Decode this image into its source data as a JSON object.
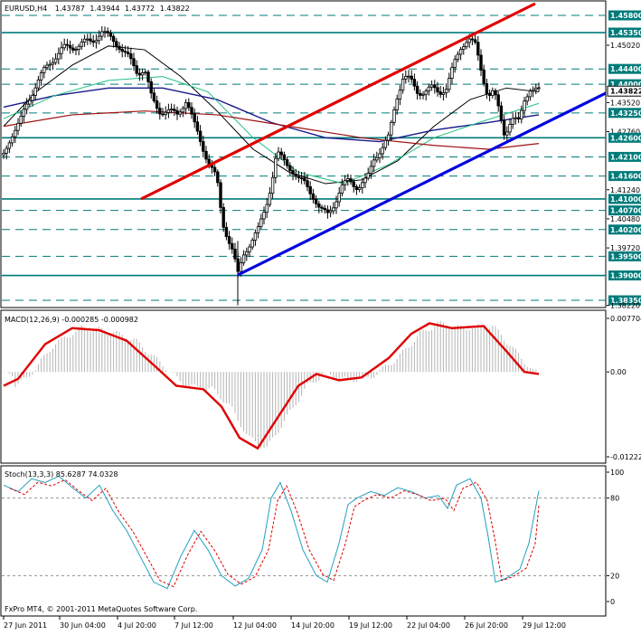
{
  "chart_header": {
    "symbol_tf": "EURUSD,H4",
    "open": "1.43787",
    "high": "1.43944",
    "low": "1.43772",
    "close": "1.43822"
  },
  "price_axis": {
    "levels": [
      {
        "price": 1.458,
        "label": "1.45800",
        "boxed": true
      },
      {
        "price": 1.4535,
        "label": "1.45350",
        "boxed": true
      },
      {
        "price": 1.4502,
        "label": "1.45020",
        "boxed": false
      },
      {
        "price": 1.444,
        "label": "1.44400",
        "boxed": true
      },
      {
        "price": 1.44,
        "label": "1.44000",
        "boxed": true
      },
      {
        "price": 1.4352,
        "label": "1.43520",
        "boxed": false
      },
      {
        "price": 1.4325,
        "label": "1.43250",
        "boxed": true
      },
      {
        "price": 1.4276,
        "label": "1.42760",
        "boxed": false
      },
      {
        "price": 1.426,
        "label": "1.42600",
        "boxed": true
      },
      {
        "price": 1.421,
        "label": "1.42100",
        "boxed": true
      },
      {
        "price": 1.416,
        "label": "1.41600",
        "boxed": true
      },
      {
        "price": 1.4124,
        "label": "1.41240",
        "boxed": false
      },
      {
        "price": 1.41,
        "label": "1.41000",
        "boxed": true
      },
      {
        "price": 1.407,
        "label": "1.40700",
        "boxed": true
      },
      {
        "price": 1.4048,
        "label": "1.40480",
        "boxed": false
      },
      {
        "price": 1.402,
        "label": "1.40200",
        "boxed": true
      },
      {
        "price": 1.3972,
        "label": "1.39720",
        "boxed": false
      },
      {
        "price": 1.395,
        "label": "1.39500",
        "boxed": true
      },
      {
        "price": 1.39,
        "label": "1.39000",
        "boxed": true
      },
      {
        "price": 1.3835,
        "label": "1.38350",
        "boxed": true
      },
      {
        "price": 1.3822,
        "label": "1.38220",
        "boxed": false
      }
    ],
    "current_price": {
      "price": 1.4382,
      "label": "1.43822"
    }
  },
  "macd": {
    "title": "MACD(12,26,9) -0.000285 -0.000982",
    "axis_labels": [
      "0.007704",
      "0.00",
      "-0.012227"
    ],
    "axis_values": [
      0.007704,
      0.0,
      -0.012227
    ]
  },
  "stoch": {
    "title": "Stoch(13,3,3) 85.6287 74.0328",
    "axis_labels": [
      "100",
      "80",
      "20",
      "0"
    ],
    "axis_values": [
      100,
      80,
      20,
      0
    ]
  },
  "copyright": "FxPro MT4, © 2001-2011 MetaQuotes Software Corp.",
  "time_axis": [
    "27 Jun 2011",
    "30 Jun 04:00",
    "4 Jul 20:00",
    "7 Jul 12:00",
    "12 Jul 04:00",
    "14 Jul 20:00",
    "19 Jul 12:00",
    "22 Jul 04:00",
    "26 Jul 20:00",
    "29 Jul 12:00"
  ],
  "colors": {
    "level_line": "#007b7b",
    "level_tag": "#007b7b",
    "channel_upper": "#e00000",
    "channel_lower": "#0000e0",
    "macd_line": "#e00000",
    "macd_hist": "#b4b4b4",
    "stoch_main": "#20a0c0",
    "stoch_signal": "#e00000",
    "ma_black": "#000000",
    "ma_navy": "#1a1a8c",
    "ma_green": "#20c080",
    "ma_maroon": "#a01010",
    "candle": "#000000"
  },
  "chart_data": [
    {
      "type": "line",
      "title": "EURUSD,H4",
      "x": [
        "27 Jun 2011",
        "30 Jun 04:00",
        "4 Jul 20:00",
        "7 Jul 12:00",
        "12 Jul 04:00",
        "14 Jul 20:00",
        "19 Jul 12:00",
        "22 Jul 04:00",
        "26 Jul 20:00",
        "29 Jul 12:00"
      ],
      "series": [
        {
          "values": [
            1.423,
            1.451,
            1.433,
            1.419,
            1.395,
            1.408,
            1.42,
            1.44,
            1.452,
            1.438
          ]
        }
      ],
      "ylim": [
        1.3822,
        1.46
      ]
    },
    {
      "type": "line",
      "title": "MACD(12,26,9) -0.000285 -0.000982",
      "x": [
        "27 Jun 2011",
        "30 Jun 04:00",
        "4 Jul 20:00",
        "7 Jul 12:00",
        "12 Jul 04:00",
        "14 Jul 20:00",
        "19 Jul 12:00",
        "22 Jul 04:00",
        "26 Jul 20:00",
        "29 Jul 12:00"
      ],
      "series": [
        {
          "values": [
            -0.002,
            0.006,
            0.005,
            -0.002,
            -0.011,
            -0.001,
            -0.001,
            0.006,
            0.006,
            -0.0003
          ]
        }
      ],
      "ylim": [
        -0.012227,
        0.007704
      ]
    },
    {
      "type": "line",
      "title": "Stoch(13,3,3) 85.6287 74.0328",
      "x": [
        "27 Jun 2011",
        "30 Jun 04:00",
        "4 Jul 20:00",
        "7 Jul 12:00",
        "12 Jul 04:00",
        "14 Jul 20:00",
        "19 Jul 12:00",
        "22 Jul 04:00",
        "26 Jul 20:00",
        "29 Jul 12:00"
      ],
      "series": [
        {
          "name": "main",
          "values": [
            90,
            90,
            55,
            15,
            20,
            80,
            15,
            90,
            80,
            85.6287
          ]
        },
        {
          "name": "signal",
          "values": [
            85,
            88,
            60,
            20,
            18,
            75,
            20,
            85,
            78,
            74.0328
          ]
        }
      ],
      "ylim": [
        0,
        100
      ]
    }
  ]
}
